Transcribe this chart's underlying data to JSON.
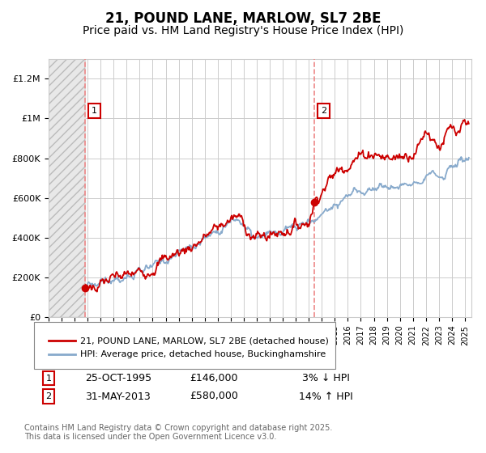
{
  "title": "21, POUND LANE, MARLOW, SL7 2BE",
  "subtitle": "Price paid vs. HM Land Registry's House Price Index (HPI)",
  "ylim": [
    0,
    1300000
  ],
  "xlim_start": 1993.0,
  "xlim_end": 2025.5,
  "yticks": [
    0,
    200000,
    400000,
    600000,
    800000,
    1000000,
    1200000
  ],
  "ytick_labels": [
    "£0",
    "£200K",
    "£400K",
    "£600K",
    "£800K",
    "£1M",
    "£1.2M"
  ],
  "purchase1_x": 1995.82,
  "purchase1_y": 146000,
  "purchase2_x": 2013.42,
  "purchase2_y": 580000,
  "line_color_red": "#cc0000",
  "line_color_blue": "#88aacc",
  "marker_color": "#cc0000",
  "dashed_color": "#ee8888",
  "legend_label_red": "21, POUND LANE, MARLOW, SL7 2BE (detached house)",
  "legend_label_blue": "HPI: Average price, detached house, Buckinghamshire",
  "annotation1_date": "25-OCT-1995",
  "annotation1_price": "£146,000",
  "annotation1_hpi": "3% ↓ HPI",
  "annotation2_date": "31-MAY-2013",
  "annotation2_price": "£580,000",
  "annotation2_hpi": "14% ↑ HPI",
  "footnote": "Contains HM Land Registry data © Crown copyright and database right 2025.\nThis data is licensed under the Open Government Licence v3.0.",
  "bg_color": "#ffffff",
  "grid_color": "#cccccc",
  "title_fontsize": 12,
  "subtitle_fontsize": 10,
  "tick_fontsize": 8
}
